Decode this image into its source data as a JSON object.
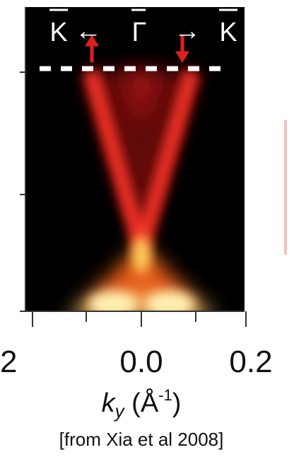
{
  "figure": {
    "top_labels": [
      "K",
      "←",
      "Γ",
      "→",
      "K"
    ],
    "x_tick_labels": [
      "2",
      "0.0",
      "0.2"
    ],
    "x_axis_label": {
      "symbol": "k",
      "subscript": "y",
      "unit_open": " (Å",
      "exponent": "-1",
      "unit_close": ")"
    },
    "caption": "[from Xia et al 2008]"
  }
}
